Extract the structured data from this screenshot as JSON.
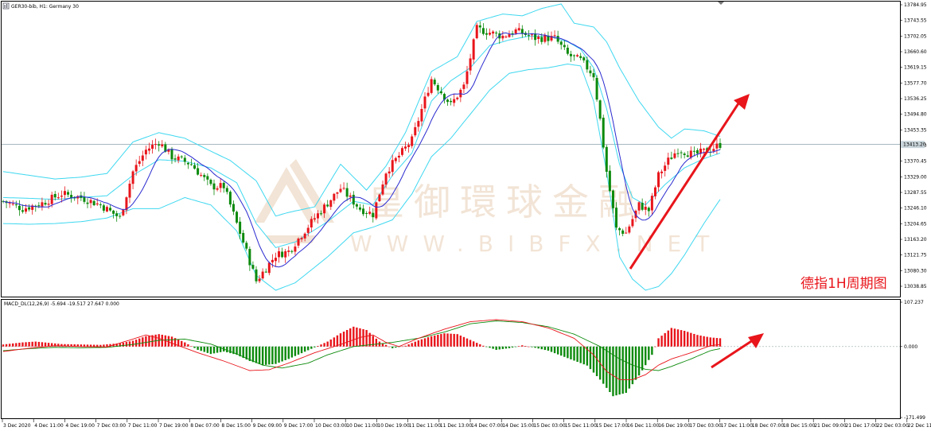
{
  "chart_header": {
    "symbol_label": "GER30-bib, H1:  Germany 30",
    "macd_label": "MACD_DL(12,26,9) -5.694 -19.517 27.647 0.000"
  },
  "watermark": {
    "text_cn": "皇御環球金融",
    "text_en": "WWW.BIBFX.NET"
  },
  "annotation": {
    "text": "德指1H周期图"
  },
  "current_price_label": "13413.20",
  "colors": {
    "bull_candle": "#e8151b",
    "bear_candle": "#0c8a0c",
    "bollinger": "#3fd8f0",
    "ma_line": "#2b2bd0",
    "macd_red": "#e8151b",
    "macd_green": "#0c8a0c",
    "arrow": "#e8151b"
  },
  "chart_data": [
    {
      "type": "candlestick",
      "title": "",
      "price_axis_ticks": [
        "13784.95",
        "13743.55",
        "13702.05",
        "13660.60",
        "13619.15",
        "13577.70",
        "13536.25",
        "13494.80",
        "13453.35",
        "13411.90",
        "13370.45",
        "13329.00",
        "13287.55",
        "13246.10",
        "13204.65",
        "13163.20",
        "13121.75",
        "13080.30",
        "13038.85"
      ],
      "time_axis_ticks": [
        "3 Dec 2020",
        "4 Dec 11:00",
        "4 Dec 19:00",
        "7 Dec 03:00",
        "7 Dec 11:00",
        "7 Dec 19:00",
        "8 Dec 07:00",
        "8 Dec 15:00",
        "9 Dec 09:00",
        "9 Dec 17:00",
        "10 Dec 03:00",
        "10 Dec 11:00",
        "10 Dec 19:00",
        "11 Dec 11:00",
        "11 Dec 13:00",
        "14 Dec 07:00",
        "14 Dec 15:00",
        "15 Dec 03:00",
        "15 Dec 11:00",
        "15 Dec 17:00",
        "16 Dec 11:00",
        "16 Dec 19:00",
        "17 Dec 03:00",
        "17 Dec 11:00",
        "18 Dec 07:00",
        "18 Dec 15:00",
        "21 Dec 09:00",
        "21 Dec 17:00",
        "22 Dec 03:00",
        "22 Dec 11:00",
        "22 Dec 19:00"
      ],
      "ylim": [
        13005,
        13792
      ],
      "current_price": 13413.2,
      "ohlc_keypoints": [
        [
          0,
          13260
        ],
        [
          6,
          13240
        ],
        [
          12,
          13255
        ],
        [
          18,
          13280
        ],
        [
          24,
          13270
        ],
        [
          30,
          13250
        ],
        [
          36,
          13215
        ],
        [
          40,
          13340
        ],
        [
          44,
          13398
        ],
        [
          48,
          13420
        ],
        [
          52,
          13380
        ],
        [
          58,
          13360
        ],
        [
          64,
          13300
        ],
        [
          68,
          13300
        ],
        [
          74,
          13150
        ],
        [
          78,
          13045
        ],
        [
          84,
          13115
        ],
        [
          88,
          13125
        ],
        [
          96,
          13215
        ],
        [
          104,
          13295
        ],
        [
          110,
          13240
        ],
        [
          114,
          13225
        ],
        [
          118,
          13340
        ],
        [
          126,
          13425
        ],
        [
          132,
          13590
        ],
        [
          138,
          13520
        ],
        [
          142,
          13570
        ],
        [
          146,
          13725
        ],
        [
          154,
          13705
        ],
        [
          158,
          13720
        ],
        [
          164,
          13700
        ],
        [
          170,
          13700
        ],
        [
          174,
          13655
        ],
        [
          178,
          13640
        ],
        [
          182,
          13600
        ],
        [
          184,
          13480
        ],
        [
          186,
          13340
        ],
        [
          189,
          13185
        ],
        [
          192,
          13175
        ],
        [
          196,
          13250
        ],
        [
          199,
          13235
        ],
        [
          202,
          13330
        ],
        [
          205,
          13370
        ],
        [
          208,
          13400
        ],
        [
          213,
          13385
        ],
        [
          218,
          13400
        ],
        [
          221,
          13413
        ]
      ],
      "bollinger": {
        "upper": [
          [
            0,
            13340
          ],
          [
            8,
            13330
          ],
          [
            16,
            13320
          ],
          [
            24,
            13325
          ],
          [
            32,
            13335
          ],
          [
            40,
            13420
          ],
          [
            48,
            13445
          ],
          [
            56,
            13430
          ],
          [
            64,
            13395
          ],
          [
            70,
            13370
          ],
          [
            78,
            13315
          ],
          [
            84,
            13220
          ],
          [
            88,
            13230
          ],
          [
            96,
            13245
          ],
          [
            104,
            13360
          ],
          [
            112,
            13290
          ],
          [
            118,
            13355
          ],
          [
            124,
            13445
          ],
          [
            132,
            13610
          ],
          [
            140,
            13650
          ],
          [
            146,
            13745
          ],
          [
            154,
            13765
          ],
          [
            160,
            13760
          ],
          [
            166,
            13780
          ],
          [
            172,
            13792
          ],
          [
            176,
            13740
          ],
          [
            182,
            13730
          ],
          [
            186,
            13690
          ],
          [
            190,
            13620
          ],
          [
            196,
            13530
          ],
          [
            202,
            13460
          ],
          [
            206,
            13430
          ],
          [
            210,
            13455
          ],
          [
            216,
            13450
          ],
          [
            221,
            13435
          ]
        ],
        "middle": [
          [
            0,
            13270
          ],
          [
            8,
            13268
          ],
          [
            16,
            13265
          ],
          [
            24,
            13270
          ],
          [
            32,
            13275
          ],
          [
            40,
            13330
          ],
          [
            48,
            13372
          ],
          [
            56,
            13368
          ],
          [
            64,
            13350
          ],
          [
            72,
            13310
          ],
          [
            78,
            13200
          ],
          [
            84,
            13135
          ],
          [
            90,
            13150
          ],
          [
            100,
            13205
          ],
          [
            108,
            13260
          ],
          [
            114,
            13250
          ],
          [
            120,
            13330
          ],
          [
            126,
            13390
          ],
          [
            132,
            13530
          ],
          [
            138,
            13585
          ],
          [
            144,
            13620
          ],
          [
            150,
            13680
          ],
          [
            156,
            13695
          ],
          [
            162,
            13705
          ],
          [
            168,
            13705
          ],
          [
            174,
            13690
          ],
          [
            178,
            13670
          ],
          [
            182,
            13620
          ],
          [
            186,
            13510
          ],
          [
            190,
            13360
          ],
          [
            194,
            13270
          ],
          [
            198,
            13250
          ],
          [
            204,
            13305
          ],
          [
            210,
            13350
          ],
          [
            216,
            13375
          ],
          [
            221,
            13390
          ]
        ],
        "lower": [
          [
            0,
            13200
          ],
          [
            8,
            13198
          ],
          [
            16,
            13200
          ],
          [
            24,
            13205
          ],
          [
            32,
            13215
          ],
          [
            40,
            13240
          ],
          [
            48,
            13240
          ],
          [
            56,
            13270
          ],
          [
            64,
            13250
          ],
          [
            72,
            13180
          ],
          [
            78,
            13060
          ],
          [
            84,
            13020
          ],
          [
            90,
            13040
          ],
          [
            100,
            13110
          ],
          [
            108,
            13175
          ],
          [
            114,
            13190
          ],
          [
            120,
            13210
          ],
          [
            126,
            13280
          ],
          [
            132,
            13380
          ],
          [
            138,
            13430
          ],
          [
            144,
            13495
          ],
          [
            150,
            13560
          ],
          [
            156,
            13605
          ],
          [
            162,
            13615
          ],
          [
            168,
            13620
          ],
          [
            174,
            13630
          ],
          [
            178,
            13625
          ],
          [
            182,
            13530
          ],
          [
            186,
            13340
          ],
          [
            190,
            13110
          ],
          [
            194,
            13050
          ],
          [
            198,
            13020
          ],
          [
            202,
            13030
          ],
          [
            206,
            13065
          ],
          [
            210,
            13115
          ],
          [
            216,
            13200
          ],
          [
            221,
            13265
          ]
        ]
      }
    },
    {
      "type": "bar",
      "title": "",
      "name": "MACD_DL(12,26,9)",
      "ylim": [
        -171.499,
        107.237
      ],
      "axis_ticks": [
        "107.237",
        "0.000",
        "-171.499"
      ],
      "histogram_keypoints": [
        [
          0,
          5
        ],
        [
          6,
          10
        ],
        [
          10,
          12
        ],
        [
          14,
          9
        ],
        [
          18,
          6
        ],
        [
          24,
          5
        ],
        [
          30,
          4
        ],
        [
          36,
          8
        ],
        [
          40,
          14
        ],
        [
          44,
          25
        ],
        [
          48,
          30
        ],
        [
          52,
          24
        ],
        [
          56,
          10
        ],
        [
          60,
          -8
        ],
        [
          64,
          -18
        ],
        [
          68,
          -12
        ],
        [
          72,
          -20
        ],
        [
          76,
          -35
        ],
        [
          80,
          -45
        ],
        [
          84,
          -42
        ],
        [
          88,
          -30
        ],
        [
          92,
          -16
        ],
        [
          96,
          -2
        ],
        [
          100,
          12
        ],
        [
          104,
          32
        ],
        [
          108,
          48
        ],
        [
          112,
          40
        ],
        [
          116,
          12
        ],
        [
          120,
          -4
        ],
        [
          124,
          2
        ],
        [
          128,
          15
        ],
        [
          132,
          25
        ],
        [
          136,
          32
        ],
        [
          140,
          30
        ],
        [
          144,
          16
        ],
        [
          148,
          2
        ],
        [
          152,
          -8
        ],
        [
          156,
          -4
        ],
        [
          160,
          3
        ],
        [
          164,
          -3
        ],
        [
          168,
          -10
        ],
        [
          172,
          -22
        ],
        [
          176,
          -34
        ],
        [
          180,
          -46
        ],
        [
          184,
          -80
        ],
        [
          188,
          -120
        ],
        [
          192,
          -112
        ],
        [
          196,
          -70
        ],
        [
          200,
          -20
        ],
        [
          202,
          20
        ],
        [
          206,
          45
        ],
        [
          210,
          38
        ],
        [
          214,
          28
        ],
        [
          218,
          22
        ],
        [
          221,
          20
        ]
      ],
      "signal_line": [
        [
          0,
          -10
        ],
        [
          8,
          -5
        ],
        [
          16,
          -2
        ],
        [
          24,
          -3
        ],
        [
          32,
          -2
        ],
        [
          40,
          5
        ],
        [
          48,
          15
        ],
        [
          56,
          18
        ],
        [
          64,
          6
        ],
        [
          72,
          -18
        ],
        [
          80,
          -45
        ],
        [
          86,
          -52
        ],
        [
          94,
          -40
        ],
        [
          100,
          -20
        ],
        [
          108,
          0
        ],
        [
          114,
          5
        ],
        [
          120,
          10
        ],
        [
          128,
          20
        ],
        [
          136,
          35
        ],
        [
          144,
          55
        ],
        [
          152,
          62
        ],
        [
          160,
          58
        ],
        [
          168,
          48
        ],
        [
          176,
          30
        ],
        [
          184,
          0
        ],
        [
          190,
          -30
        ],
        [
          194,
          -45
        ],
        [
          198,
          -55
        ],
        [
          202,
          -58
        ],
        [
          206,
          -48
        ],
        [
          212,
          -30
        ],
        [
          218,
          -10
        ],
        [
          221,
          -5
        ]
      ],
      "macd_line": [
        [
          0,
          -12
        ],
        [
          8,
          -4
        ],
        [
          16,
          2
        ],
        [
          24,
          0
        ],
        [
          32,
          -1
        ],
        [
          40,
          18
        ],
        [
          44,
          28
        ],
        [
          48,
          20
        ],
        [
          52,
          8
        ],
        [
          60,
          -15
        ],
        [
          68,
          -35
        ],
        [
          76,
          -58
        ],
        [
          82,
          -56
        ],
        [
          88,
          -40
        ],
        [
          96,
          -15
        ],
        [
          104,
          5
        ],
        [
          110,
          22
        ],
        [
          114,
          28
        ],
        [
          118,
          10
        ],
        [
          122,
          0
        ],
        [
          128,
          20
        ],
        [
          136,
          42
        ],
        [
          144,
          60
        ],
        [
          152,
          65
        ],
        [
          160,
          60
        ],
        [
          168,
          45
        ],
        [
          176,
          20
        ],
        [
          182,
          -20
        ],
        [
          186,
          -60
        ],
        [
          190,
          -80
        ],
        [
          194,
          -80
        ],
        [
          198,
          -68
        ],
        [
          202,
          -45
        ],
        [
          206,
          -30
        ],
        [
          212,
          -15
        ],
        [
          218,
          2
        ],
        [
          221,
          5
        ]
      ]
    }
  ]
}
